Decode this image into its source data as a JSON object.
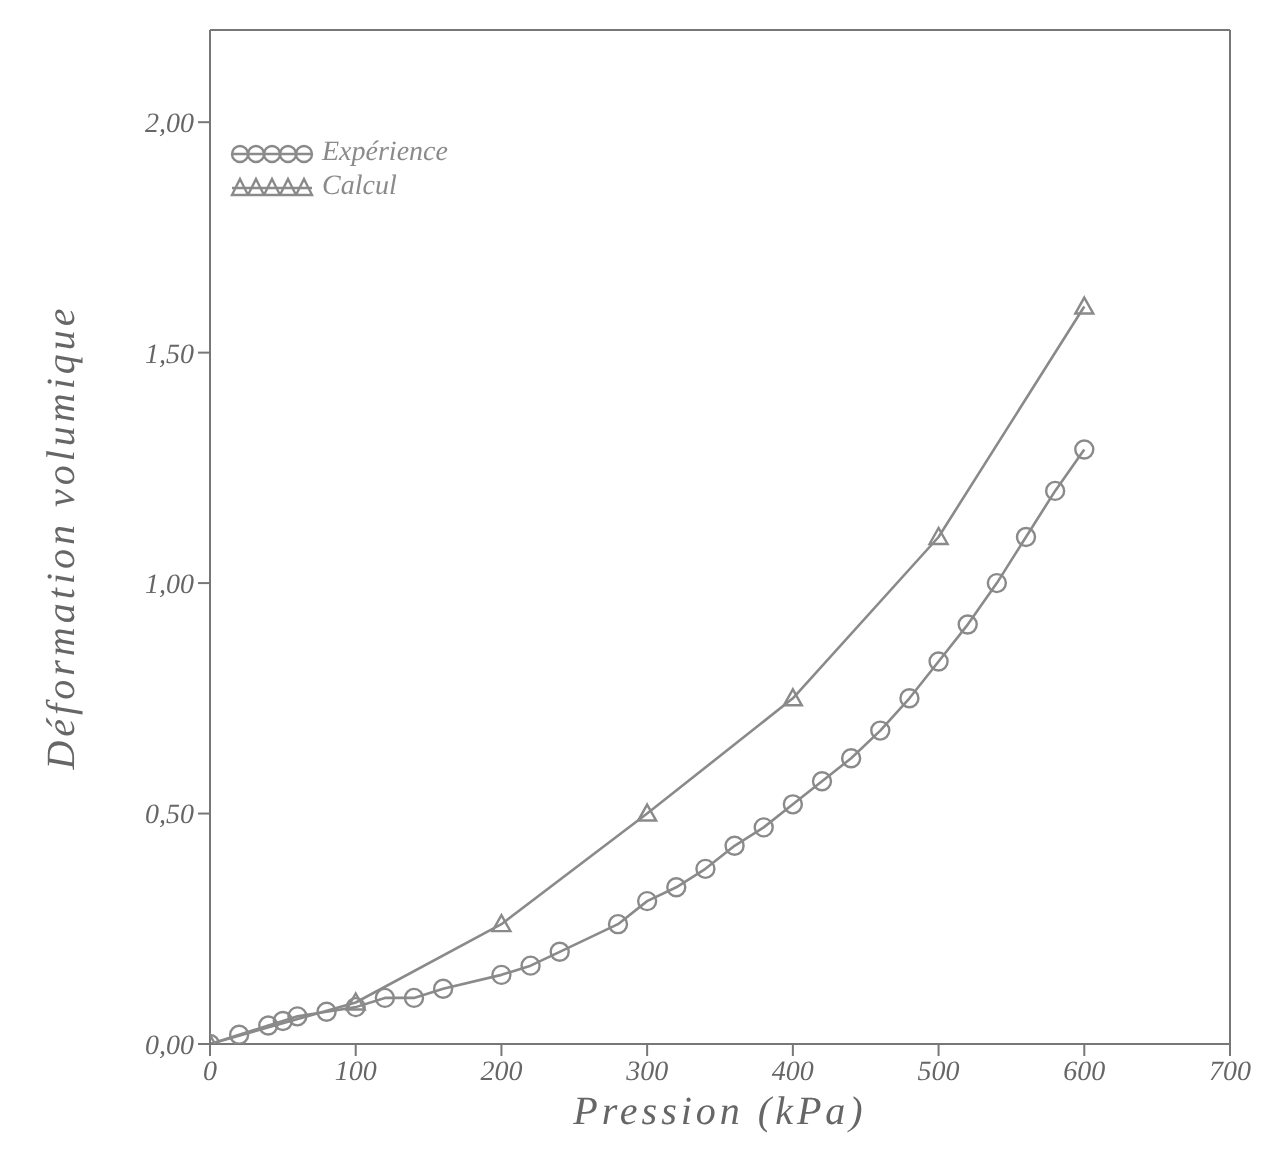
{
  "chart_data": {
    "type": "line",
    "xlabel": "Pression (kPa)",
    "ylabel": "Déformation volumique",
    "xlim": [
      0,
      700
    ],
    "xticks": [
      0,
      100,
      200,
      300,
      400,
      500,
      600,
      700
    ],
    "ylim": [
      0,
      2.2
    ],
    "yticks": [
      {
        "value": 0,
        "label": "0,00"
      },
      {
        "value": 0.5,
        "label": "0,50"
      },
      {
        "value": 1,
        "label": "1,00"
      },
      {
        "value": 1.5,
        "label": "1,50"
      },
      {
        "value": 2,
        "label": "2,00"
      }
    ],
    "grid": false,
    "legend": "top left",
    "line_style": "solid",
    "series": [
      {
        "name": "Expérience",
        "color": "#8a8a8a",
        "marker": "circle",
        "x": [
          0,
          20,
          40,
          50,
          60,
          80,
          100,
          120,
          140,
          160,
          200,
          220,
          240,
          280,
          300,
          320,
          340,
          360,
          380,
          400,
          420,
          440,
          460,
          480,
          500,
          520,
          540,
          560,
          580,
          600
        ],
        "values": [
          0,
          0.02,
          0.04,
          0.05,
          0.06,
          0.07,
          0.08,
          0.1,
          0.1,
          0.12,
          0.15,
          0.17,
          0.2,
          0.26,
          0.31,
          0.34,
          0.38,
          0.43,
          0.47,
          0.52,
          0.57,
          0.62,
          0.68,
          0.75,
          0.83,
          0.91,
          1.0,
          1.1,
          1.2,
          1.29
        ]
      },
      {
        "name": "Calcul",
        "color": "#8a8a8a",
        "marker": "triangle",
        "x": [
          0,
          100,
          200,
          300,
          400,
          500,
          600
        ],
        "values": [
          0,
          0.09,
          0.26,
          0.5,
          0.75,
          1.1,
          1.6
        ]
      }
    ]
  }
}
